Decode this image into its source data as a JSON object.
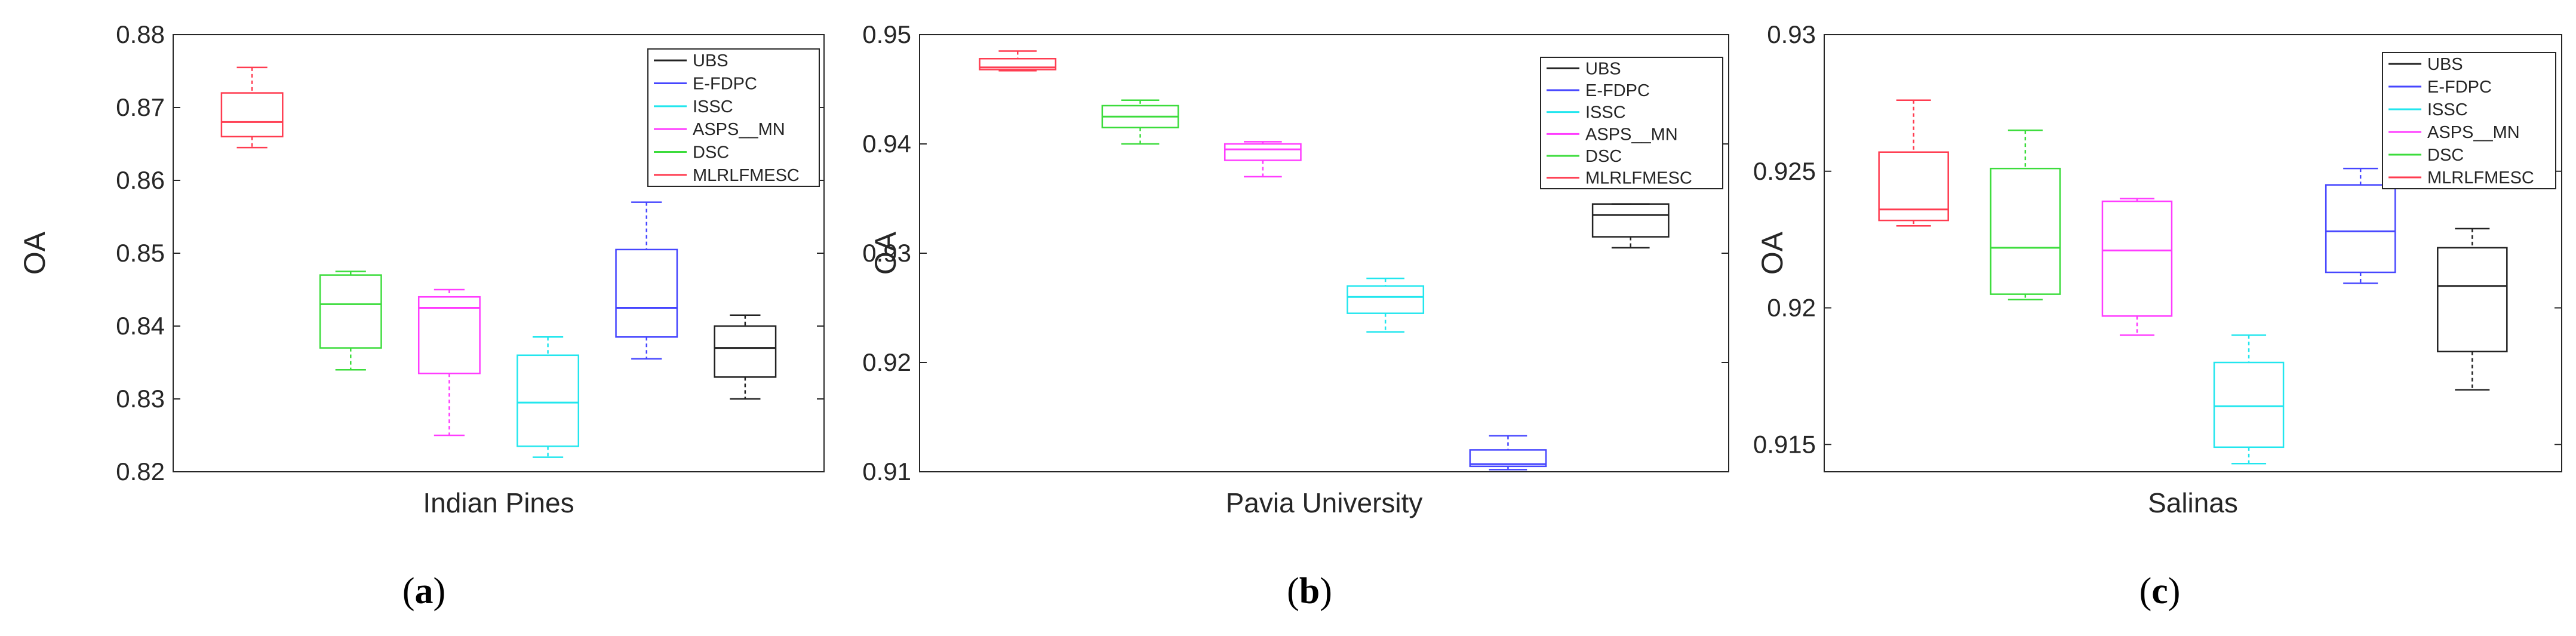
{
  "captions": [
    {
      "open": "(",
      "letter": "a",
      "close": ")"
    },
    {
      "open": "(",
      "letter": "b",
      "close": ")"
    },
    {
      "open": "(",
      "letter": "c",
      "close": ")"
    }
  ],
  "colors": {
    "UBS": "#222222",
    "E-FDPC": "#4646ff",
    "ISSC": "#22e6ee",
    "ASPS__MN": "#ff3cff",
    "DSC": "#3cdc3c",
    "MLRLFMESC": "#ff3c50"
  },
  "chart_data": [
    {
      "type": "box",
      "title": "",
      "xlabel": "Indian Pines",
      "ylabel": "OA",
      "ylim": [
        0.82,
        0.88
      ],
      "yticks": [
        "0.82",
        "0.83",
        "0.84",
        "0.85",
        "0.86",
        "0.87",
        "0.88"
      ],
      "yticks_values": [
        0.82,
        0.83,
        0.84,
        0.85,
        0.86,
        0.87,
        0.88
      ],
      "grid": false,
      "legend_position": "top-right",
      "legend": [
        "UBS",
        "E-FDPC",
        "ISSC",
        "ASPS__MN",
        "DSC",
        "MLRLFMESC"
      ],
      "series": [
        {
          "name": "MLRLFMESC",
          "min": 0.8645,
          "q1": 0.866,
          "median": 0.868,
          "q3": 0.872,
          "max": 0.8755
        },
        {
          "name": "DSC",
          "min": 0.834,
          "q1": 0.837,
          "median": 0.843,
          "q3": 0.847,
          "max": 0.8475
        },
        {
          "name": "ASPS__MN",
          "min": 0.825,
          "q1": 0.8335,
          "median": 0.8425,
          "q3": 0.844,
          "max": 0.845
        },
        {
          "name": "ISSC",
          "min": 0.822,
          "q1": 0.8235,
          "median": 0.8295,
          "q3": 0.836,
          "max": 0.8385
        },
        {
          "name": "E-FDPC",
          "min": 0.8355,
          "q1": 0.8385,
          "median": 0.8425,
          "q3": 0.8505,
          "max": 0.857
        },
        {
          "name": "UBS",
          "min": 0.83,
          "q1": 0.833,
          "median": 0.837,
          "q3": 0.84,
          "max": 0.8415
        }
      ]
    },
    {
      "type": "box",
      "title": "",
      "xlabel": "Pavia University",
      "ylabel": "OA",
      "ylim": [
        0.91,
        0.95
      ],
      "yticks": [
        "0.91",
        "0.92",
        "0.93",
        "0.94",
        "0.95"
      ],
      "yticks_values": [
        0.91,
        0.92,
        0.93,
        0.94,
        0.95
      ],
      "grid": false,
      "legend_position": "top-right",
      "legend": [
        "UBS",
        "E-FDPC",
        "ISSC",
        "ASPS__MN",
        "DSC",
        "MLRLFMESC"
      ],
      "series": [
        {
          "name": "MLRLFMESC",
          "min": 0.9467,
          "q1": 0.9468,
          "median": 0.947,
          "q3": 0.9478,
          "max": 0.9485
        },
        {
          "name": "DSC",
          "min": 0.94,
          "q1": 0.9415,
          "median": 0.9425,
          "q3": 0.9435,
          "max": 0.944
        },
        {
          "name": "ASPS__MN",
          "min": 0.937,
          "q1": 0.9385,
          "median": 0.9395,
          "q3": 0.94,
          "max": 0.9402
        },
        {
          "name": "ISSC",
          "min": 0.9228,
          "q1": 0.9245,
          "median": 0.926,
          "q3": 0.927,
          "max": 0.9277
        },
        {
          "name": "E-FDPC",
          "min": 0.9102,
          "q1": 0.9105,
          "median": 0.9107,
          "q3": 0.912,
          "max": 0.9133
        },
        {
          "name": "UBS",
          "min": 0.9305,
          "q1": 0.9315,
          "median": 0.9335,
          "q3": 0.9345,
          "max": 0.9345
        }
      ]
    },
    {
      "type": "box",
      "title": "",
      "xlabel": "Salinas",
      "ylabel": "OA",
      "ylim": [
        0.914,
        0.93
      ],
      "yticks": [
        "0.915",
        "0.92",
        "0.925",
        "0.93"
      ],
      "yticks_values": [
        0.915,
        0.92,
        0.925,
        0.93
      ],
      "grid": false,
      "legend_position": "top-right",
      "legend": [
        "UBS",
        "E-FDPC",
        "ISSC",
        "ASPS__MN",
        "DSC",
        "MLRLFMESC"
      ],
      "series": [
        {
          "name": "MLRLFMESC",
          "min": 0.923,
          "q1": 0.9232,
          "median": 0.9236,
          "q3": 0.9257,
          "max": 0.9276
        },
        {
          "name": "DSC",
          "min": 0.9203,
          "q1": 0.9205,
          "median": 0.9222,
          "q3": 0.9251,
          "max": 0.9265
        },
        {
          "name": "ASPS__MN",
          "min": 0.919,
          "q1": 0.9197,
          "median": 0.9221,
          "q3": 0.9239,
          "max": 0.924
        },
        {
          "name": "ISSC",
          "min": 0.9143,
          "q1": 0.9149,
          "median": 0.9164,
          "q3": 0.918,
          "max": 0.919
        },
        {
          "name": "E-FDPC",
          "min": 0.9209,
          "q1": 0.9213,
          "median": 0.9228,
          "q3": 0.9245,
          "max": 0.9251
        },
        {
          "name": "UBS",
          "min": 0.917,
          "q1": 0.9184,
          "median": 0.9208,
          "q3": 0.9222,
          "max": 0.9229
        }
      ]
    }
  ]
}
